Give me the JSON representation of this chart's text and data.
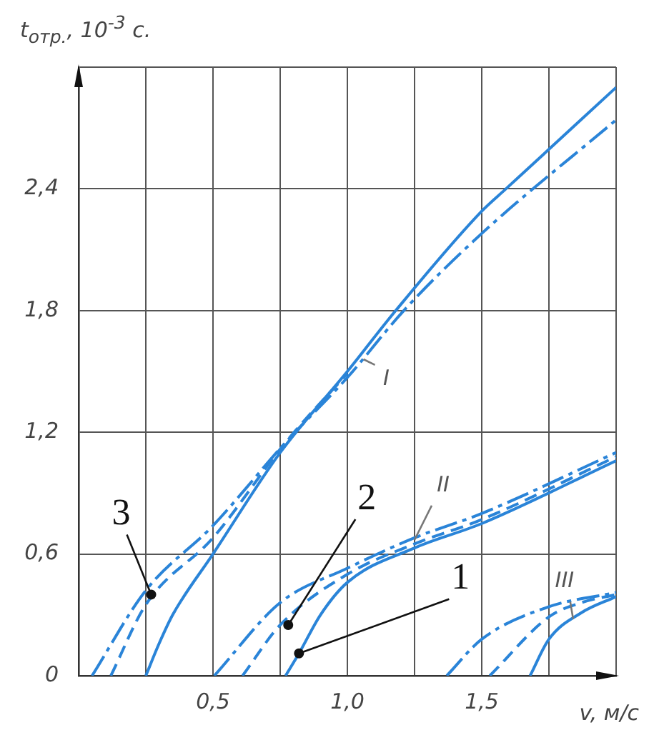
{
  "chart_data": {
    "type": "line",
    "xlabel": "v, м/с",
    "ylabel": "t$_{отр.}$, 10$^{-3}$ с.",
    "xlim": [
      0,
      2.0
    ],
    "xticks": [
      {
        "value": 0,
        "label": null
      },
      {
        "value": 0.25,
        "label": null
      },
      {
        "value": 0.5,
        "label": "0,5"
      },
      {
        "value": 0.75,
        "label": null
      },
      {
        "value": 1.0,
        "label": "1,0"
      },
      {
        "value": 1.25,
        "label": null
      },
      {
        "value": 1.5,
        "label": "1,5"
      },
      {
        "value": 1.75,
        "label": null
      },
      {
        "value": 2.0,
        "label": null
      }
    ],
    "ylim": [
      0,
      3.0
    ],
    "yticks": [
      {
        "value": 0,
        "label": "0"
      },
      {
        "value": 0.6,
        "label": "0,6"
      },
      {
        "value": 1.2,
        "label": "1,2"
      },
      {
        "value": 1.8,
        "label": "1,8"
      },
      {
        "value": 2.4,
        "label": "2,4"
      },
      {
        "value": 3.0,
        "label": null
      }
    ],
    "grid": true,
    "legend": false,
    "marker": "none",
    "series": [
      {
        "color": "#2a84d8",
        "line_style": "solid",
        "x": [
          0.25,
          0.3,
          0.35,
          0.5,
          0.75,
          1.0,
          1.18,
          1.5,
          1.59,
          2.0
        ],
        "values": [
          0,
          0.16,
          0.3,
          0.6,
          1.1,
          1.5,
          1.8,
          2.29,
          2.4,
          2.9
        ]
      },
      {
        "color": "#2a84d8",
        "line_style": "dashed",
        "x": [
          0.12,
          0.25,
          0.5,
          0.77,
          1.0
        ],
        "values": [
          0,
          0.35,
          0.68,
          1.15,
          1.49
        ]
      },
      {
        "color": "#2a84d8",
        "line_style": "dashdot",
        "x": [
          0.05,
          0.25,
          0.5,
          0.77,
          1.0,
          1.21,
          1.5,
          2.0
        ],
        "values": [
          0,
          0.42,
          0.74,
          1.15,
          1.47,
          1.8,
          2.18,
          2.74
        ]
      },
      {
        "color": "#2a84d8",
        "line_style": "solid",
        "x": [
          0.77,
          0.82,
          0.9,
          1.0,
          1.25,
          1.5,
          2.0
        ],
        "values": [
          0,
          0.11,
          0.3,
          0.46,
          0.63,
          0.75,
          1.06
        ]
      },
      {
        "color": "#2a84d8",
        "line_style": "dashed",
        "x": [
          0.61,
          0.75,
          1.0,
          1.25,
          1.5,
          2.0
        ],
        "values": [
          0,
          0.25,
          0.5,
          0.65,
          0.77,
          1.08
        ]
      },
      {
        "color": "#2a84d8",
        "line_style": "dashdot",
        "x": [
          0.505,
          0.75,
          1.0,
          1.25,
          1.5,
          2.0
        ],
        "values": [
          0,
          0.36,
          0.53,
          0.68,
          0.8,
          1.1
        ]
      },
      {
        "color": "#2a84d8",
        "line_style": "solid",
        "x": [
          1.68,
          1.75,
          1.87,
          2.0
        ],
        "values": [
          0,
          0.18,
          0.31,
          0.39
        ]
      },
      {
        "color": "#2a84d8",
        "line_style": "dashed",
        "x": [
          1.53,
          1.75,
          1.87,
          2.0
        ],
        "values": [
          0,
          0.29,
          0.36,
          0.4
        ]
      },
      {
        "color": "#2a84d8",
        "line_style": "dashdot",
        "x": [
          1.37,
          1.5,
          1.75,
          2.0
        ],
        "values": [
          0,
          0.18,
          0.34,
          0.41
        ]
      }
    ],
    "annotations": [
      {
        "text": "I",
        "x": 1.06,
        "y": 1.56
      },
      {
        "text": "II",
        "x": 1.25,
        "y": 0.67
      },
      {
        "text": "III",
        "x": 1.84,
        "y": 0.28
      },
      {
        "text": "3",
        "x": 0.27,
        "y": 0.4
      },
      {
        "text": "2",
        "x": 0.78,
        "y": 0.25
      },
      {
        "text": "1",
        "x": 0.82,
        "y": 0.11
      }
    ]
  }
}
